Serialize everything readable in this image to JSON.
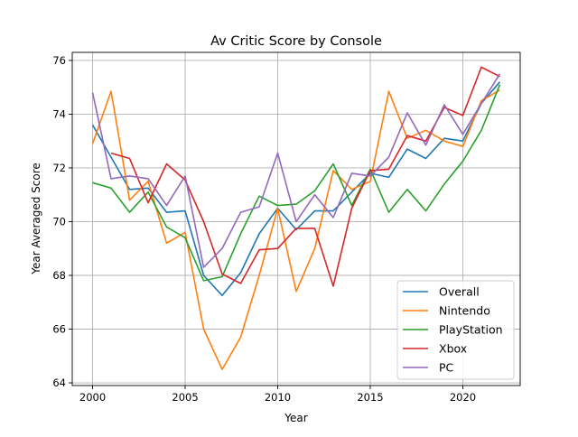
{
  "chart_data": {
    "type": "line",
    "title": "Av Critic Score by Console",
    "xlabel": "Year",
    "ylabel": "Year Averaged Score",
    "xlim": [
      1998.9,
      2023.1
    ],
    "ylim": [
      63.9,
      76.3
    ],
    "xticks": [
      2000,
      2005,
      2010,
      2015,
      2020
    ],
    "yticks": [
      64,
      66,
      68,
      70,
      72,
      74,
      76
    ],
    "grid": true,
    "legend_position": "lower-right",
    "x": [
      2000,
      2001,
      2002,
      2003,
      2004,
      2005,
      2006,
      2007,
      2008,
      2009,
      2010,
      2011,
      2012,
      2013,
      2014,
      2015,
      2016,
      2017,
      2018,
      2019,
      2020,
      2021,
      2022
    ],
    "series": [
      {
        "name": "Overall",
        "color": "#1f77b4",
        "values": [
          73.6,
          72.4,
          71.2,
          71.25,
          70.35,
          70.4,
          68.0,
          67.25,
          68.1,
          69.55,
          70.5,
          69.7,
          70.4,
          70.4,
          71.1,
          71.8,
          71.65,
          72.7,
          72.35,
          73.1,
          73.0,
          74.4,
          75.2
        ]
      },
      {
        "name": "Nintendo",
        "color": "#ff7f0e",
        "values": [
          72.9,
          74.85,
          70.8,
          71.5,
          69.2,
          69.6,
          66.0,
          64.5,
          65.7,
          68.0,
          70.5,
          67.4,
          69.0,
          71.9,
          71.2,
          71.5,
          74.85,
          73.1,
          73.4,
          73.0,
          72.8,
          74.5,
          74.9
        ]
      },
      {
        "name": "PlayStation",
        "color": "#2ca02c",
        "values": [
          71.45,
          71.25,
          70.35,
          71.1,
          69.8,
          69.4,
          67.8,
          67.95,
          69.55,
          70.95,
          70.6,
          70.65,
          71.15,
          72.15,
          70.6,
          71.95,
          70.35,
          71.2,
          70.4,
          71.4,
          72.25,
          73.4,
          75.1
        ]
      },
      {
        "name": "Xbox",
        "color": "#d62728",
        "values": [
          null,
          72.55,
          72.35,
          70.7,
          72.15,
          71.55,
          70.0,
          68.05,
          67.7,
          68.95,
          69.0,
          69.75,
          69.75,
          67.6,
          70.5,
          71.9,
          71.95,
          73.2,
          73.0,
          74.25,
          73.95,
          75.75,
          75.4
        ]
      },
      {
        "name": "PC",
        "color": "#9467bd",
        "values": [
          74.8,
          71.6,
          71.7,
          71.6,
          70.6,
          71.7,
          68.3,
          69.0,
          70.35,
          70.55,
          72.55,
          70.0,
          71.0,
          70.15,
          71.8,
          71.7,
          72.4,
          74.05,
          72.85,
          74.35,
          73.25,
          74.4,
          75.5
        ]
      }
    ]
  }
}
